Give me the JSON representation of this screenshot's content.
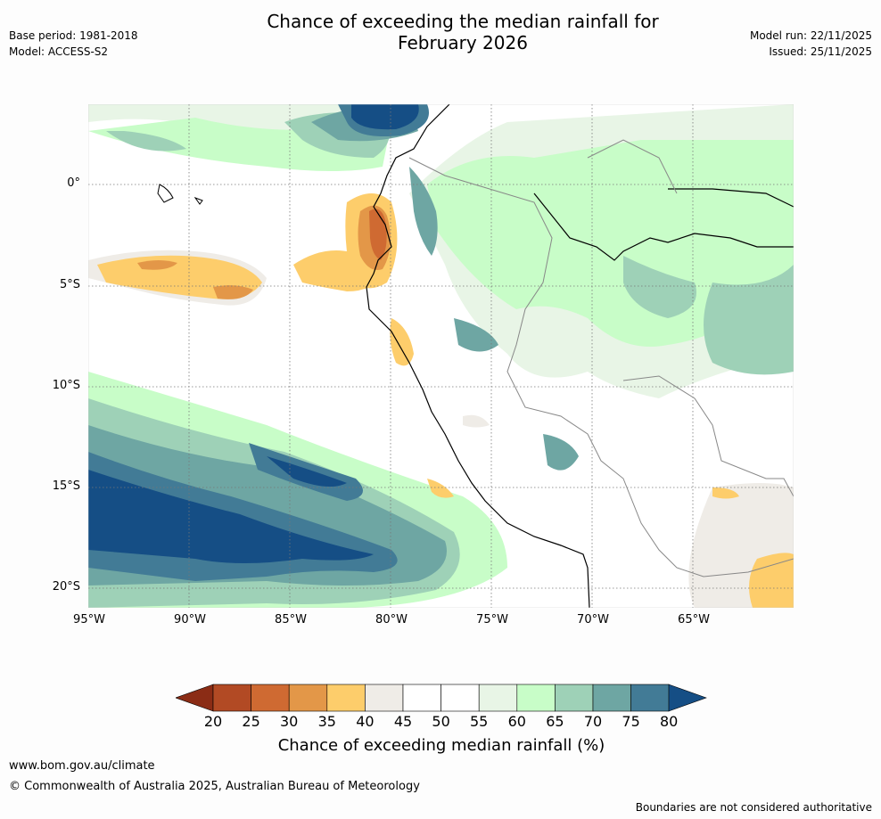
{
  "title_line1": "Chance of exceeding the median rainfall for",
  "title_line2": "February 2026",
  "base_period": "Base period: 1981-2018",
  "model": "Model: ACCESS-S2",
  "model_run": "Model run: 22/11/2025",
  "issued": "Issued: 25/11/2025",
  "lat_labels": [
    "0°",
    "5°S",
    "10°S",
    "15°S",
    "20°S"
  ],
  "lon_labels": [
    "95°W",
    "90°W",
    "85°W",
    "80°W",
    "75°W",
    "70°W",
    "65°W"
  ],
  "colorbar": {
    "ticks": [
      "20",
      "25",
      "30",
      "35",
      "40",
      "45",
      "50",
      "55",
      "60",
      "65",
      "70",
      "75",
      "80"
    ],
    "colors": [
      "#8b2c15",
      "#b24a24",
      "#cf6a32",
      "#e39748",
      "#fdcd6b",
      "#efece7",
      "#ffffff",
      "#ffffff",
      "#e8f5e6",
      "#c8fdc8",
      "#9ed1b7",
      "#6ea6a3",
      "#427b96",
      "#154e85"
    ],
    "label": "Chance of exceeding median rainfall (%)"
  },
  "website": "www.bom.gov.au/climate",
  "copyright": "© Commonwealth of Australia 2025, Australian Bureau of Meteorology",
  "disclaimer": "Boundaries are not considered authoritative",
  "icons": [
    "coastline-map",
    "colorbar-arrow-left",
    "colorbar-arrow-right"
  ]
}
